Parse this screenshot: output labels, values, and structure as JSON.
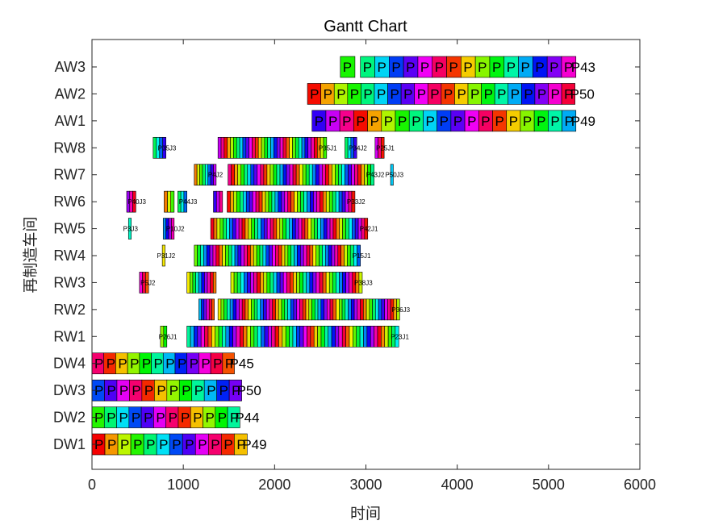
{
  "chart_data": {
    "type": "gantt",
    "title": "Gantt Chart",
    "xlabel": "时间",
    "ylabel": "再制造车间",
    "xlim": [
      0,
      6000
    ],
    "xticks": [
      0,
      1000,
      2000,
      3000,
      4000,
      5000,
      6000
    ],
    "xtick_labels": [
      "0",
      "1000",
      "2000",
      "3000",
      "4000",
      "5000",
      "6000"
    ],
    "categories": [
      "DW1",
      "DW2",
      "DW3",
      "DW4",
      "RW1",
      "RW2",
      "RW3",
      "RW4",
      "RW5",
      "RW6",
      "RW7",
      "RW8",
      "AW1",
      "AW2",
      "AW3"
    ],
    "rows": [
      {
        "name": "DW1",
        "style": "big",
        "segments": [
          [
            0,
            1700,
            12
          ]
        ],
        "annotations": [
          {
            "x": 1700,
            "text": "P49"
          }
        ]
      },
      {
        "name": "DW2",
        "style": "big",
        "segments": [
          [
            0,
            1620,
            12
          ]
        ],
        "annotations": [
          {
            "x": 1620,
            "text": "P44"
          }
        ]
      },
      {
        "name": "DW3",
        "style": "big",
        "segments": [
          [
            0,
            1640,
            12
          ]
        ],
        "annotations": [
          {
            "x": 1640,
            "text": "P50"
          }
        ]
      },
      {
        "name": "DW4",
        "style": "big",
        "segments": [
          [
            0,
            1560,
            12
          ]
        ],
        "annotations": [
          {
            "x": 1560,
            "text": "P45"
          }
        ]
      },
      {
        "name": "RW1",
        "style": "small",
        "segments": [
          [
            750,
            820,
            2
          ],
          [
            1040,
            3360,
            60
          ]
        ],
        "annotations": [
          {
            "x": 820,
            "text": "P26J1"
          },
          {
            "x": 3360,
            "text": "P23J1"
          }
        ]
      },
      {
        "name": "RW2",
        "style": "small",
        "segments": [
          [
            1170,
            1340,
            6
          ],
          [
            1380,
            3370,
            60
          ]
        ],
        "annotations": [
          {
            "x": 3370,
            "text": "P36J3"
          }
        ]
      },
      {
        "name": "RW3",
        "style": "small",
        "segments": [
          [
            520,
            620,
            3
          ],
          [
            1040,
            1360,
            10
          ],
          [
            1520,
            2960,
            40
          ]
        ],
        "annotations": [
          {
            "x": 620,
            "text": "P5J2"
          },
          {
            "x": 2960,
            "text": "P38J3"
          }
        ]
      },
      {
        "name": "RW4",
        "style": "small",
        "segments": [
          [
            770,
            800,
            1
          ],
          [
            1120,
            2830,
            50
          ],
          [
            2830,
            2940,
            3
          ]
        ],
        "annotations": [
          {
            "x": 800,
            "text": "P31J2"
          },
          {
            "x": 2940,
            "text": "P15J1"
          }
        ]
      },
      {
        "name": "RW5",
        "style": "small",
        "segments": [
          [
            400,
            430,
            1
          ],
          [
            780,
            900,
            4
          ],
          [
            1300,
            3020,
            50
          ]
        ],
        "annotations": [
          {
            "x": 430,
            "text": "P3J3"
          },
          {
            "x": 900,
            "text": "P10J2"
          },
          {
            "x": 3020,
            "text": "P42J1"
          }
        ]
      },
      {
        "name": "RW6",
        "style": "small",
        "segments": [
          [
            380,
            480,
            3
          ],
          [
            790,
            900,
            3
          ],
          [
            940,
            1040,
            3
          ],
          [
            1330,
            1430,
            3
          ],
          [
            1480,
            2880,
            40
          ]
        ],
        "annotations": [
          {
            "x": 480,
            "text": "P40J3"
          },
          {
            "x": 1040,
            "text": "P44J3"
          },
          {
            "x": 2880,
            "text": "P33J2"
          }
        ]
      },
      {
        "name": "RW7",
        "style": "small",
        "segments": [
          [
            1120,
            1360,
            8
          ],
          [
            1490,
            3090,
            45
          ],
          [
            3270,
            3300,
            1
          ]
        ],
        "annotations": [
          {
            "x": 1360,
            "text": "P4J2"
          },
          {
            "x": 3090,
            "text": "P43J2"
          },
          {
            "x": 3300,
            "text": "P50J3"
          }
        ]
      },
      {
        "name": "RW8",
        "style": "small",
        "segments": [
          [
            670,
            810,
            4
          ],
          [
            1380,
            2570,
            35
          ],
          [
            2770,
            2900,
            4
          ],
          [
            3100,
            3200,
            3
          ]
        ],
        "annotations": [
          {
            "x": 810,
            "text": "P35J3"
          },
          {
            "x": 2570,
            "text": "P35J1"
          },
          {
            "x": 2900,
            "text": "P34J2"
          },
          {
            "x": 3200,
            "text": "P25J1"
          }
        ]
      },
      {
        "name": "AW1",
        "style": "big",
        "segments": [
          [
            2410,
            5300,
            19
          ]
        ],
        "annotations": [
          {
            "x": 5300,
            "text": "P49"
          }
        ]
      },
      {
        "name": "AW2",
        "style": "big",
        "segments": [
          [
            2360,
            5290,
            20
          ]
        ],
        "annotations": [
          {
            "x": 5290,
            "text": "P50"
          }
        ]
      },
      {
        "name": "AW3",
        "style": "big",
        "segments": [
          [
            2720,
            2880,
            1
          ],
          [
            2940,
            5300,
            15
          ]
        ],
        "annotations": [
          {
            "x": 5300,
            "text": "P43"
          }
        ]
      }
    ]
  }
}
